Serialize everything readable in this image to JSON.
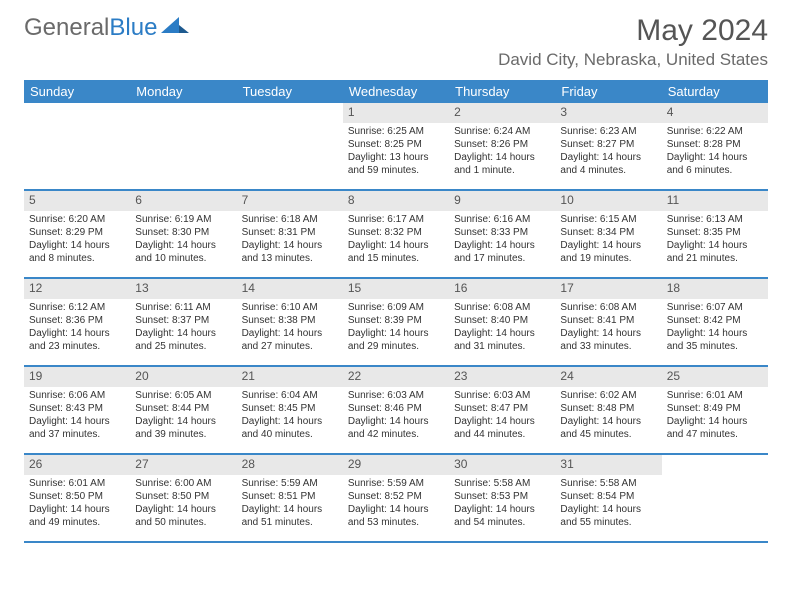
{
  "logo": {
    "part1": "General",
    "part2": "Blue"
  },
  "title": "May 2024",
  "location": "David City, Nebraska, United States",
  "colors": {
    "header_bg": "#3a87c8",
    "daynum_bg": "#e8e8e8",
    "border": "#3a87c8",
    "text": "#333333",
    "title_text": "#555555",
    "logo_gray": "#6a6a6a",
    "logo_blue": "#2b7cc5"
  },
  "dayNames": [
    "Sunday",
    "Monday",
    "Tuesday",
    "Wednesday",
    "Thursday",
    "Friday",
    "Saturday"
  ],
  "weeks": [
    [
      {
        "n": "",
        "sr": "",
        "ss": "",
        "dl": ""
      },
      {
        "n": "",
        "sr": "",
        "ss": "",
        "dl": ""
      },
      {
        "n": "",
        "sr": "",
        "ss": "",
        "dl": ""
      },
      {
        "n": "1",
        "sr": "Sunrise: 6:25 AM",
        "ss": "Sunset: 8:25 PM",
        "dl": "Daylight: 13 hours and 59 minutes."
      },
      {
        "n": "2",
        "sr": "Sunrise: 6:24 AM",
        "ss": "Sunset: 8:26 PM",
        "dl": "Daylight: 14 hours and 1 minute."
      },
      {
        "n": "3",
        "sr": "Sunrise: 6:23 AM",
        "ss": "Sunset: 8:27 PM",
        "dl": "Daylight: 14 hours and 4 minutes."
      },
      {
        "n": "4",
        "sr": "Sunrise: 6:22 AM",
        "ss": "Sunset: 8:28 PM",
        "dl": "Daylight: 14 hours and 6 minutes."
      }
    ],
    [
      {
        "n": "5",
        "sr": "Sunrise: 6:20 AM",
        "ss": "Sunset: 8:29 PM",
        "dl": "Daylight: 14 hours and 8 minutes."
      },
      {
        "n": "6",
        "sr": "Sunrise: 6:19 AM",
        "ss": "Sunset: 8:30 PM",
        "dl": "Daylight: 14 hours and 10 minutes."
      },
      {
        "n": "7",
        "sr": "Sunrise: 6:18 AM",
        "ss": "Sunset: 8:31 PM",
        "dl": "Daylight: 14 hours and 13 minutes."
      },
      {
        "n": "8",
        "sr": "Sunrise: 6:17 AM",
        "ss": "Sunset: 8:32 PM",
        "dl": "Daylight: 14 hours and 15 minutes."
      },
      {
        "n": "9",
        "sr": "Sunrise: 6:16 AM",
        "ss": "Sunset: 8:33 PM",
        "dl": "Daylight: 14 hours and 17 minutes."
      },
      {
        "n": "10",
        "sr": "Sunrise: 6:15 AM",
        "ss": "Sunset: 8:34 PM",
        "dl": "Daylight: 14 hours and 19 minutes."
      },
      {
        "n": "11",
        "sr": "Sunrise: 6:13 AM",
        "ss": "Sunset: 8:35 PM",
        "dl": "Daylight: 14 hours and 21 minutes."
      }
    ],
    [
      {
        "n": "12",
        "sr": "Sunrise: 6:12 AM",
        "ss": "Sunset: 8:36 PM",
        "dl": "Daylight: 14 hours and 23 minutes."
      },
      {
        "n": "13",
        "sr": "Sunrise: 6:11 AM",
        "ss": "Sunset: 8:37 PM",
        "dl": "Daylight: 14 hours and 25 minutes."
      },
      {
        "n": "14",
        "sr": "Sunrise: 6:10 AM",
        "ss": "Sunset: 8:38 PM",
        "dl": "Daylight: 14 hours and 27 minutes."
      },
      {
        "n": "15",
        "sr": "Sunrise: 6:09 AM",
        "ss": "Sunset: 8:39 PM",
        "dl": "Daylight: 14 hours and 29 minutes."
      },
      {
        "n": "16",
        "sr": "Sunrise: 6:08 AM",
        "ss": "Sunset: 8:40 PM",
        "dl": "Daylight: 14 hours and 31 minutes."
      },
      {
        "n": "17",
        "sr": "Sunrise: 6:08 AM",
        "ss": "Sunset: 8:41 PM",
        "dl": "Daylight: 14 hours and 33 minutes."
      },
      {
        "n": "18",
        "sr": "Sunrise: 6:07 AM",
        "ss": "Sunset: 8:42 PM",
        "dl": "Daylight: 14 hours and 35 minutes."
      }
    ],
    [
      {
        "n": "19",
        "sr": "Sunrise: 6:06 AM",
        "ss": "Sunset: 8:43 PM",
        "dl": "Daylight: 14 hours and 37 minutes."
      },
      {
        "n": "20",
        "sr": "Sunrise: 6:05 AM",
        "ss": "Sunset: 8:44 PM",
        "dl": "Daylight: 14 hours and 39 minutes."
      },
      {
        "n": "21",
        "sr": "Sunrise: 6:04 AM",
        "ss": "Sunset: 8:45 PM",
        "dl": "Daylight: 14 hours and 40 minutes."
      },
      {
        "n": "22",
        "sr": "Sunrise: 6:03 AM",
        "ss": "Sunset: 8:46 PM",
        "dl": "Daylight: 14 hours and 42 minutes."
      },
      {
        "n": "23",
        "sr": "Sunrise: 6:03 AM",
        "ss": "Sunset: 8:47 PM",
        "dl": "Daylight: 14 hours and 44 minutes."
      },
      {
        "n": "24",
        "sr": "Sunrise: 6:02 AM",
        "ss": "Sunset: 8:48 PM",
        "dl": "Daylight: 14 hours and 45 minutes."
      },
      {
        "n": "25",
        "sr": "Sunrise: 6:01 AM",
        "ss": "Sunset: 8:49 PM",
        "dl": "Daylight: 14 hours and 47 minutes."
      }
    ],
    [
      {
        "n": "26",
        "sr": "Sunrise: 6:01 AM",
        "ss": "Sunset: 8:50 PM",
        "dl": "Daylight: 14 hours and 49 minutes."
      },
      {
        "n": "27",
        "sr": "Sunrise: 6:00 AM",
        "ss": "Sunset: 8:50 PM",
        "dl": "Daylight: 14 hours and 50 minutes."
      },
      {
        "n": "28",
        "sr": "Sunrise: 5:59 AM",
        "ss": "Sunset: 8:51 PM",
        "dl": "Daylight: 14 hours and 51 minutes."
      },
      {
        "n": "29",
        "sr": "Sunrise: 5:59 AM",
        "ss": "Sunset: 8:52 PM",
        "dl": "Daylight: 14 hours and 53 minutes."
      },
      {
        "n": "30",
        "sr": "Sunrise: 5:58 AM",
        "ss": "Sunset: 8:53 PM",
        "dl": "Daylight: 14 hours and 54 minutes."
      },
      {
        "n": "31",
        "sr": "Sunrise: 5:58 AM",
        "ss": "Sunset: 8:54 PM",
        "dl": "Daylight: 14 hours and 55 minutes."
      },
      {
        "n": "",
        "sr": "",
        "ss": "",
        "dl": ""
      }
    ]
  ]
}
